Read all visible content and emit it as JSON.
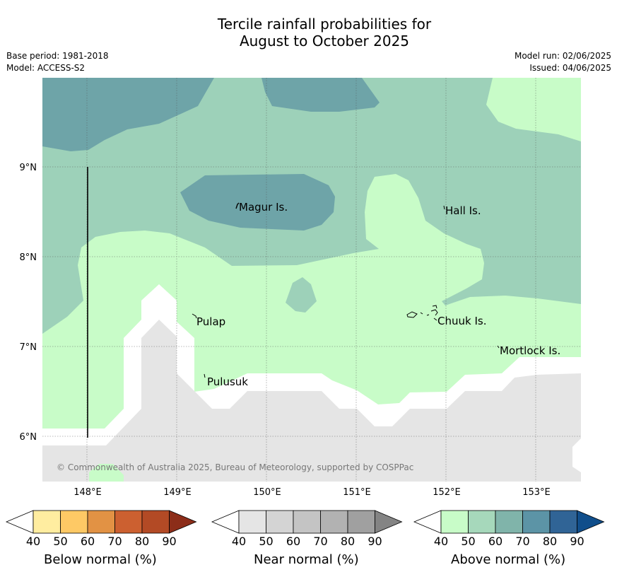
{
  "title": {
    "line1": "Tercile rainfall probabilities for",
    "line2": "August to October 2025"
  },
  "meta": {
    "base_period": "Base period: 1981-2018",
    "model": "Model: ACCESS-S2",
    "model_run": "Model run: 02/06/2025",
    "issued": "Issued: 04/06/2025"
  },
  "map": {
    "lat_labels": [
      "9°N",
      "8°N",
      "7°N",
      "6°N"
    ],
    "lon_labels": [
      "148°E",
      "149°E",
      "150°E",
      "151°E",
      "152°E",
      "153°E"
    ],
    "places": [
      "Magur Is.",
      "Hall Is.",
      "Pulap",
      "Chuuk Is.",
      "Mortlock Is.",
      "Pulusuk"
    ],
    "copyright": "© Commonwealth of Australia 2025, Bureau of Meteorology, supported by COSPPac",
    "region_colors": {
      "above_40": "#c8fcc8",
      "above_50": "#9dd1b9",
      "above_60": "#6ea4a8",
      "near_40": "#e5e5e5",
      "white": "#ffffff"
    }
  },
  "legends": [
    {
      "name": "below-normal",
      "title": "Below normal (%)",
      "ticks": [
        "40",
        "50",
        "60",
        "70",
        "80",
        "90"
      ],
      "colors": [
        "#ffeda0",
        "#fec965",
        "#e29244",
        "#cc6030",
        "#b34a25",
        "#8c2d19"
      ]
    },
    {
      "name": "near-normal",
      "title": "Near normal (%)",
      "ticks": [
        "40",
        "50",
        "60",
        "70",
        "80",
        "90"
      ],
      "colors": [
        "#e5e5e5",
        "#d4d4d4",
        "#c4c4c4",
        "#b2b2b2",
        "#a0a0a0",
        "#848484"
      ]
    },
    {
      "name": "above-normal",
      "title": "Above normal (%)",
      "ticks": [
        "40",
        "50",
        "60",
        "70",
        "80",
        "90"
      ],
      "colors": [
        "#c8fcc8",
        "#a6d8bb",
        "#80b4aa",
        "#5c94a6",
        "#306496",
        "#104e8b"
      ]
    }
  ]
}
